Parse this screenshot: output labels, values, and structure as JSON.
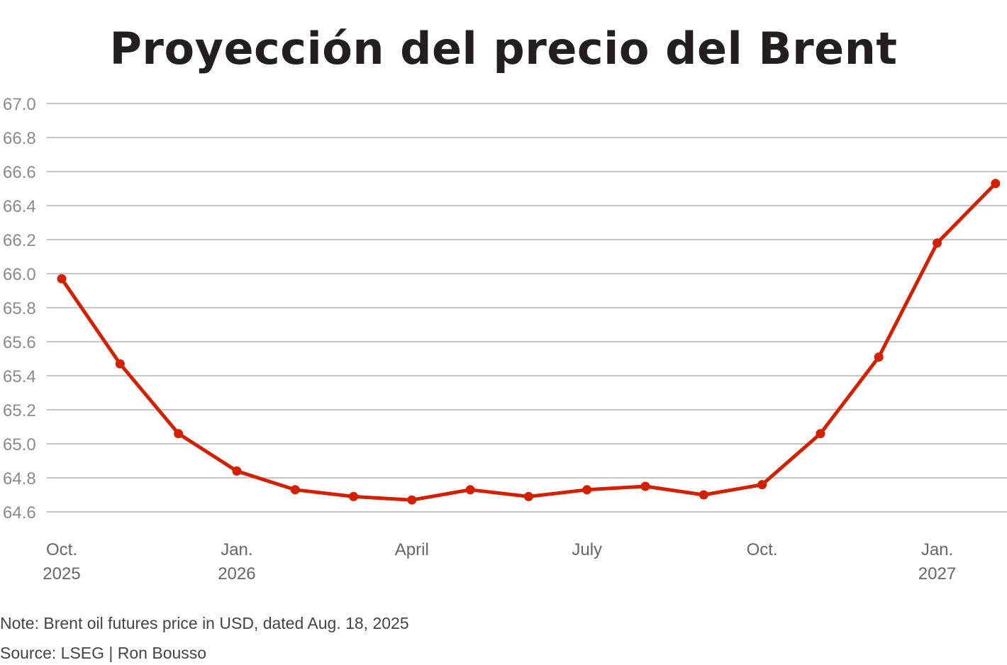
{
  "chart_data": {
    "type": "line",
    "title": "Proyección del precio del Brent",
    "xlabel": "",
    "ylabel": "",
    "ylim": [
      64.6,
      67.0
    ],
    "y_ticks": [
      "67.0",
      "66.8",
      "66.6",
      "66.4",
      "66.2",
      "66.0",
      "65.8",
      "65.6",
      "65.4",
      "65.2",
      "65.0",
      "64.8",
      "64.6"
    ],
    "x_ticks": [
      {
        "line1": "Oct.",
        "line2": "2025",
        "month_index": 0
      },
      {
        "line1": "Jan.",
        "line2": "2026",
        "month_index": 3
      },
      {
        "line1": "April",
        "line2": "",
        "month_index": 6
      },
      {
        "line1": "July",
        "line2": "",
        "month_index": 9
      },
      {
        "line1": "Oct.",
        "line2": "",
        "month_index": 12
      },
      {
        "line1": "Jan.",
        "line2": "2027",
        "month_index": 15
      }
    ],
    "grid": true,
    "legend": "none",
    "color": "#d42000",
    "x": [
      "Oct. 2025",
      "Nov. 2025",
      "Dec. 2025",
      "Jan. 2026",
      "Feb. 2026",
      "Mar. 2026",
      "Apr. 2026",
      "May 2026",
      "Jun. 2026",
      "Jul. 2026",
      "Aug. 2026",
      "Sep. 2026",
      "Oct. 2026",
      "Nov. 2026",
      "Dec. 2026",
      "Jan. 2027",
      "Feb. 2027"
    ],
    "series": [
      {
        "values": [
          65.97,
          65.47,
          65.06,
          64.84,
          64.73,
          64.69,
          64.67,
          64.73,
          64.69,
          64.73,
          64.75,
          64.7,
          64.76,
          65.06,
          65.51,
          66.18,
          66.53
        ]
      }
    ]
  },
  "footer": {
    "note": "Note: Brent oil futures price in USD, dated Aug. 18, 2025",
    "source": "Source: LSEG | Ron Bousso"
  }
}
